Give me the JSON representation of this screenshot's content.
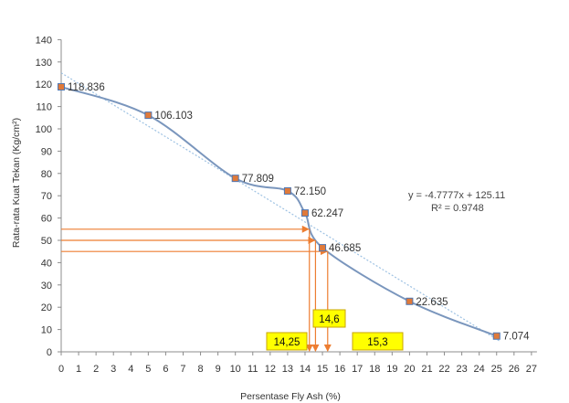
{
  "chart_data": {
    "type": "scatter",
    "title": "",
    "xlabel": "Persentase Fly Ash (%)",
    "ylabel": "Rata-rata Kuat Tekan (Kg/cm²)",
    "xlim": [
      0,
      27
    ],
    "ylim": [
      0,
      140
    ],
    "x_ticks": [
      0,
      1,
      2,
      3,
      4,
      5,
      6,
      7,
      8,
      9,
      10,
      11,
      12,
      13,
      14,
      15,
      16,
      17,
      18,
      19,
      20,
      21,
      22,
      23,
      24,
      25,
      26,
      27
    ],
    "y_ticks": [
      0,
      10,
      20,
      30,
      40,
      50,
      60,
      70,
      80,
      90,
      100,
      110,
      120,
      130,
      140
    ],
    "grid": false,
    "series": [
      {
        "x": [
          0,
          5,
          10,
          13,
          14,
          15,
          20,
          25
        ],
        "y": [
          118.836,
          106.103,
          77.809,
          72.15,
          62.247,
          46.685,
          22.635,
          7.074
        ],
        "labels": [
          "118.836",
          "106.103",
          "77.809",
          "72.150",
          "62.247",
          "46.685",
          "22.635",
          "7.074"
        ]
      }
    ],
    "trendline": {
      "slope": -4.7777,
      "intercept": 125.11,
      "equation": "y = -4.7777x + 125.11",
      "r2": "R² = 0.9748"
    },
    "reference_lines": [
      {
        "y": 55,
        "x": 14.25,
        "label": "14,25"
      },
      {
        "y": 50,
        "x": 14.6,
        "label": "14,6"
      },
      {
        "y": 45,
        "x": 15.3,
        "label": "15,3"
      }
    ],
    "colors": {
      "curve": "#7a96bd",
      "marker": "#e07a3a",
      "marker_edge": "#4f77b3",
      "trend": "#9ec2e3",
      "reference": "#ed7d31",
      "label_box": "#ffff00",
      "label_box_border": "#c9a400"
    }
  }
}
